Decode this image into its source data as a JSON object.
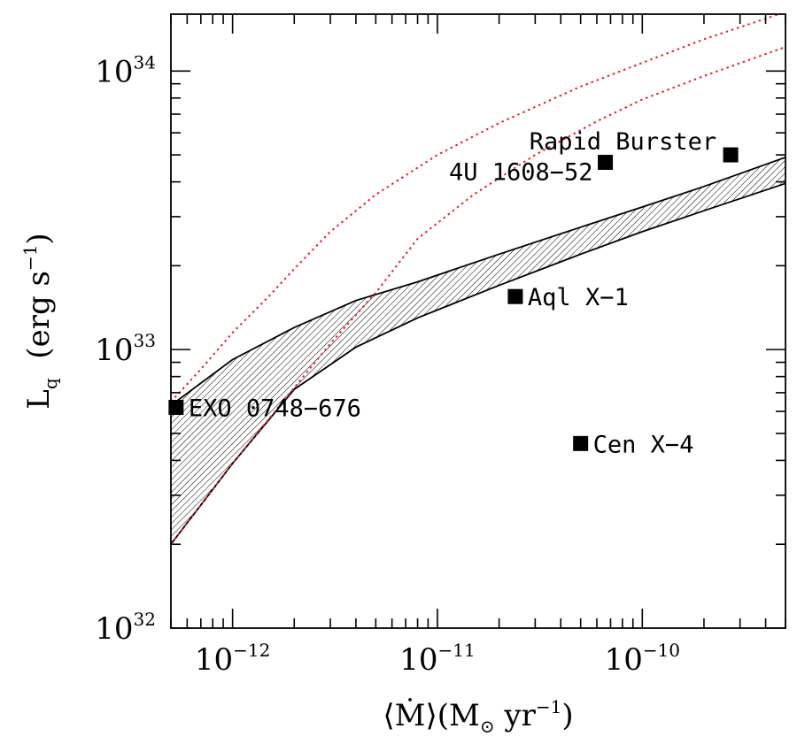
{
  "chart_data": {
    "type": "scatter",
    "x_scale": "log",
    "y_scale": "log",
    "xlim": [
      5e-13,
      5e-10
    ],
    "ylim": [
      1e+32,
      1.6e+34
    ],
    "x_ticks": [
      {
        "base": "10",
        "exp": "−12",
        "value": 1e-12
      },
      {
        "base": "10",
        "exp": "−11",
        "value": 1e-11
      },
      {
        "base": "10",
        "exp": "−10",
        "value": 1e-10
      }
    ],
    "y_ticks": [
      {
        "base": "10",
        "exp": "32",
        "value": 1e+32
      },
      {
        "base": "10",
        "exp": "33",
        "value": 1e+33
      },
      {
        "base": "10",
        "exp": "34",
        "value": 1e+34
      }
    ],
    "xlabel": {
      "open": "⟨",
      "main": "Ṁ",
      "close": "⟩",
      "paren_open": "(M",
      "sun": "⊙",
      "unit": " yr",
      "exp": "−1",
      "paren_close": ")"
    },
    "ylabel": {
      "main": "L",
      "sub": "q",
      "unit": "  (erg s",
      "exp": "−1",
      "close": ")"
    },
    "points": [
      {
        "name": "EXO 0748−676",
        "x": 5.3e-13,
        "y": 6.2e+32,
        "label_pos": "right"
      },
      {
        "name": "Cen X−4",
        "x": 5e-11,
        "y": 4.6e+32,
        "label_pos": "right"
      },
      {
        "name": "Aql X−1",
        "x": 2.4e-11,
        "y": 1.55e+33,
        "label_pos": "right"
      },
      {
        "name": "4U 1608−52",
        "x": 6.6e-11,
        "y": 4.7e+33,
        "label_pos": "left"
      },
      {
        "name": "Rapid Burster",
        "x": 2.7e-10,
        "y": 5e+33,
        "label_pos": "upper-left"
      }
    ],
    "band": {
      "upper": [
        [
          5e-13,
          6.3e+32
        ],
        [
          1e-12,
          9.2e+32
        ],
        [
          2e-12,
          1.2e+33
        ],
        [
          4e-12,
          1.5e+33
        ],
        [
          8e-12,
          1.75e+33
        ],
        [
          2e-11,
          2.2e+33
        ],
        [
          5e-11,
          2.75e+33
        ],
        [
          1e-10,
          3.25e+33
        ],
        [
          2e-10,
          3.85e+33
        ],
        [
          5e-10,
          4.9e+33
        ]
      ],
      "lower": [
        [
          5e-13,
          2e+32
        ],
        [
          1e-12,
          3.9e+32
        ],
        [
          2e-12,
          7.2e+32
        ],
        [
          4e-12,
          1.02e+33
        ],
        [
          8e-12,
          1.3e+33
        ],
        [
          2e-11,
          1.7e+33
        ],
        [
          5e-11,
          2.2e+33
        ],
        [
          1e-10,
          2.65e+33
        ],
        [
          2e-10,
          3.15e+33
        ],
        [
          5e-10,
          3.95e+33
        ]
      ],
      "hatch_color": "#000000"
    },
    "dotted_curves": [
      {
        "color": "#e8202a",
        "points": [
          [
            5e-13,
            6.5e+32
          ],
          [
            7e-13,
            8.5e+32
          ],
          [
            1e-12,
            1.15e+33
          ],
          [
            1.5e-12,
            1.55e+33
          ],
          [
            2e-12,
            1.95e+33
          ],
          [
            3e-12,
            2.65e+33
          ],
          [
            5e-12,
            3.6e+33
          ],
          [
            1e-11,
            5e+33
          ],
          [
            2e-11,
            6.5e+33
          ],
          [
            5e-11,
            8.8e+33
          ],
          [
            1e-10,
            1.07e+34
          ],
          [
            2e-10,
            1.3e+34
          ],
          [
            5e-10,
            1.63e+34
          ]
        ]
      },
      {
        "color": "#e8202a",
        "points": [
          [
            5e-13,
            2e+32
          ],
          [
            1e-12,
            3.9e+32
          ],
          [
            2e-12,
            7.3e+32
          ],
          [
            3e-12,
            1.05e+33
          ],
          [
            5e-12,
            1.6e+33
          ],
          [
            8e-12,
            2.5e+33
          ],
          [
            1.5e-11,
            3.6e+33
          ],
          [
            3e-11,
            5e+33
          ],
          [
            6e-11,
            6.6e+33
          ],
          [
            1e-10,
            7.9e+33
          ],
          [
            2e-10,
            9.6e+33
          ],
          [
            5e-10,
            1.22e+34
          ]
        ]
      }
    ],
    "grid": false,
    "marker": "filled-square"
  }
}
